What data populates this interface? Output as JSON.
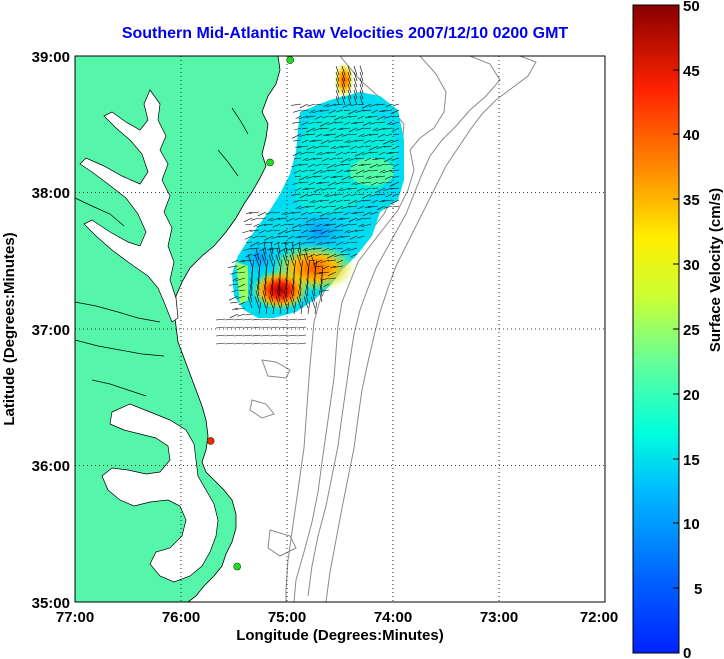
{
  "title": "Southern Mid-Atlantic Raw Velocities 2007/12/10 0200 GMT",
  "xlabel": "Longitude (Degrees:Minutes)",
  "ylabel": "Latitude (Degrees:Minutes)",
  "colorbar_label": "Surface Velocity (cm/s)",
  "x_ticks": [
    "77:00",
    "76:00",
    "75:00",
    "74:00",
    "73:00",
    "72:00"
  ],
  "y_ticks": [
    "39:00",
    "38:00",
    "37:00",
    "36:00",
    "35:00"
  ],
  "colorbar_ticks": [
    "50",
    "45",
    "40",
    "35",
    "30",
    "25",
    "20",
    "15",
    "10",
    "5",
    "0"
  ],
  "colors": {
    "land": "#55f5aa",
    "water": "#ffffff",
    "coast": "#000000",
    "bathymetry": "#8a8a8a",
    "title": "#0000ee",
    "station_green": "#22dd22",
    "station_red": "#ff2200"
  },
  "map": {
    "lon_range": [
      -77,
      -72
    ],
    "lat_range": [
      35,
      39
    ],
    "grid": "dotted",
    "stations": [
      {
        "lon": -74.97,
        "lat": 38.97,
        "status": "green"
      },
      {
        "lon": -75.16,
        "lat": 38.22,
        "status": "green"
      },
      {
        "lon": -75.72,
        "lat": 36.18,
        "status": "red"
      },
      {
        "lon": -75.47,
        "lat": 35.26,
        "status": "green"
      }
    ]
  },
  "colorbar": {
    "min": 0,
    "max": 50,
    "colormap": "jet"
  }
}
